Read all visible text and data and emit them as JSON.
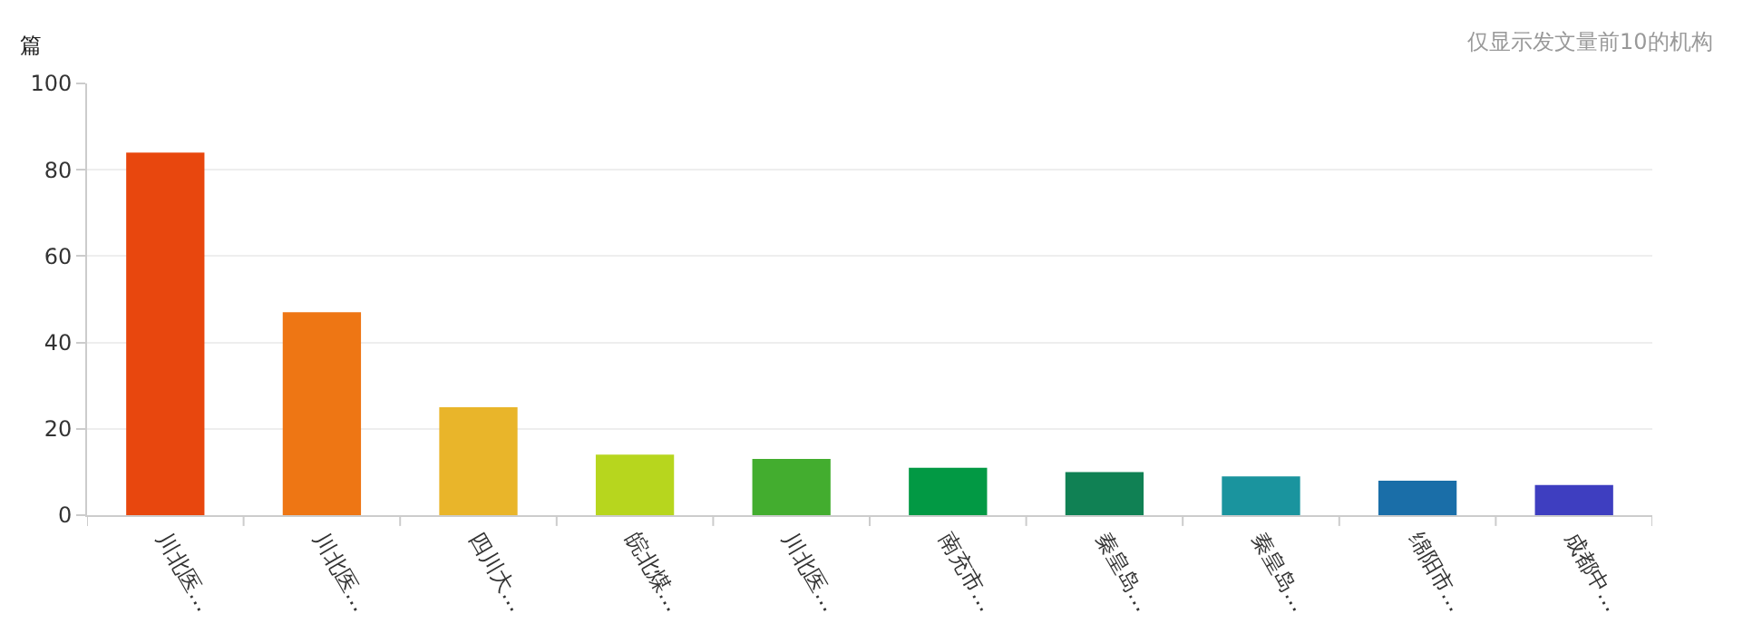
{
  "chart_data": {
    "type": "bar",
    "ylabel": "篇",
    "annotations": [
      "仅显示发文量前10的机构"
    ],
    "categories": [
      "川北医…",
      "川北医…",
      "四川大…",
      "皖北煤…",
      "川北医…",
      "南充市…",
      "秦皇岛…",
      "秦皇岛…",
      "绵阳市…",
      "成都中…"
    ],
    "values": [
      84,
      47,
      25,
      14,
      13,
      11,
      10,
      9,
      8,
      7
    ],
    "colors": [
      "#e8470e",
      "#ee7614",
      "#e9b52a",
      "#b7d61e",
      "#43ad2f",
      "#029944",
      "#108154",
      "#1a949e",
      "#1a6ea8",
      "#3e3ec0"
    ],
    "ylim": [
      0,
      100
    ],
    "yticks": [
      0,
      20,
      40,
      60,
      80,
      100
    ],
    "grid": "y"
  }
}
